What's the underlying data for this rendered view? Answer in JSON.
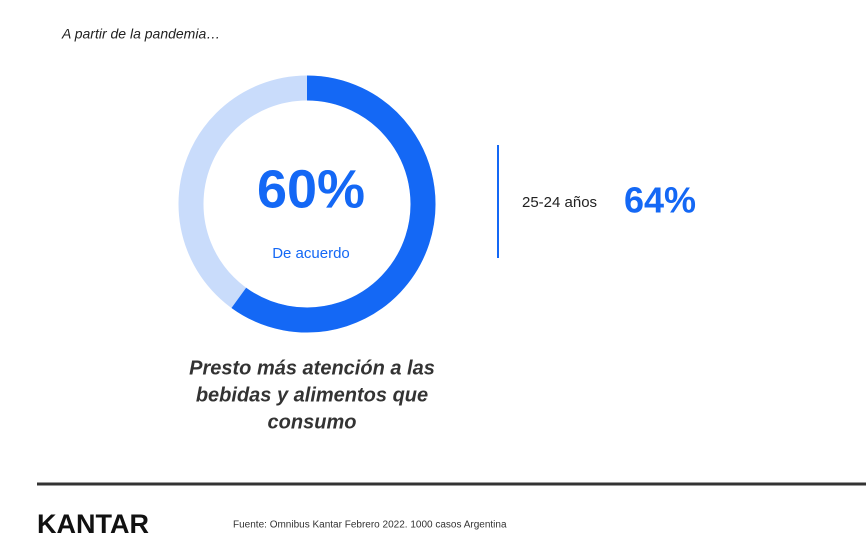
{
  "header": "A partir de la pandemia…",
  "chart_data": {
    "type": "donut",
    "categories": [
      "De acuerdo"
    ],
    "values": [
      60
    ],
    "value_labels": [
      "60%"
    ],
    "color": "#1468f5",
    "track_color": "#c9dcfb",
    "ylim": [
      0,
      100
    ]
  },
  "statement": [
    "Presto más atención a las",
    "bebidas y alimentos que",
    "consumo"
  ],
  "side_stat": {
    "label": "25-24 años",
    "value": "64%"
  },
  "footer": {
    "brand": "KANTAR",
    "source": "Fuente: Omnibus Kantar Febrero 2022. 1000 casos Argentina"
  }
}
